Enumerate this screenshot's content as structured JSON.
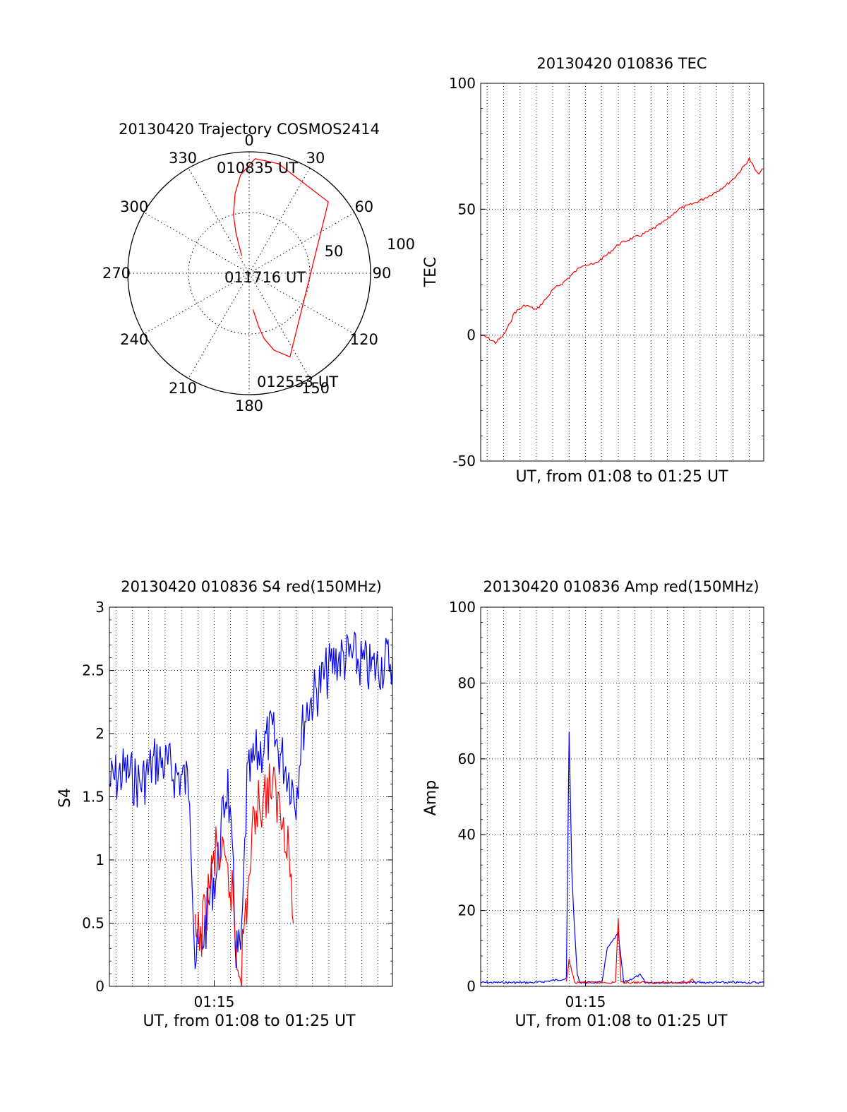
{
  "colors": {
    "red": "#ff0000",
    "blue": "#0000ff",
    "axis": "#000000",
    "grid": "#000000",
    "background": "#ffffff"
  },
  "polar": {
    "title": "20130420 Trajectory COSMOS2414",
    "azimuth_labels": [
      "0",
      "30",
      "60",
      "90",
      "120",
      "150",
      "180",
      "210",
      "240",
      "270",
      "300",
      "330"
    ],
    "radial_labels": [
      "50",
      "100"
    ],
    "annotations": {
      "start": "010835 UT",
      "middle": "011716 UT",
      "end": "012553 UT"
    },
    "grid": "dotted",
    "trajectory": {
      "series": "red",
      "points_az_el": [
        [
          337,
          76
        ],
        [
          340,
          68
        ],
        [
          342,
          58
        ],
        [
          345,
          45
        ],
        [
          350,
          30
        ],
        [
          355,
          17
        ],
        [
          3,
          5
        ],
        [
          15,
          6
        ],
        [
          48,
          11
        ],
        [
          154,
          21
        ],
        [
          162,
          30
        ],
        [
          167,
          40
        ],
        [
          170,
          50
        ],
        [
          172,
          58
        ],
        [
          174,
          63
        ]
      ]
    }
  },
  "chart_data": [
    {
      "type": "line",
      "title": "20130420 010836 TEC",
      "xlabel": "UT, from 01:08 to 01:25 UT",
      "ylabel": "TEC",
      "xlim": [
        "01:08:36",
        "01:25:53"
      ],
      "ylim": [
        -50,
        100
      ],
      "yticks": [
        "-50",
        "0",
        "50",
        "100"
      ],
      "xticks": [],
      "grid": true,
      "series": [
        {
          "color": "red",
          "x": [
            "01:08:36",
            "01:09:00",
            "01:09:30",
            "01:10:00",
            "01:10:20",
            "01:10:40",
            "01:11:20",
            "01:12:00",
            "01:12:40",
            "01:13:00",
            "01:13:40",
            "01:14:20",
            "01:14:50",
            "01:15:30",
            "01:16:20",
            "01:17:00",
            "01:17:40",
            "01:18:30",
            "01:19:20",
            "01:20:00",
            "01:20:40",
            "01:21:30",
            "01:22:10",
            "01:23:00",
            "01:23:40",
            "01:24:10",
            "01:24:40",
            "01:25:00",
            "01:25:30",
            "01:25:53"
          ],
          "values": [
            0,
            -1,
            -3,
            0,
            4,
            9,
            12,
            10,
            15,
            18,
            21,
            25,
            28,
            28,
            32,
            36,
            38,
            40,
            43,
            46,
            50,
            52,
            54,
            57,
            60,
            63,
            67,
            70,
            64,
            66
          ]
        }
      ]
    },
    {
      "type": "line",
      "title": "20130420 010836 S4 red(150MHz)",
      "xlabel": "UT, from 01:08 to 01:25 UT",
      "ylabel": "S4",
      "xlim": [
        "01:08:36",
        "01:25:53"
      ],
      "ylim": [
        0,
        3
      ],
      "yticks": [
        "0",
        "0.5",
        "1",
        "1.5",
        "2",
        "2.5",
        "3"
      ],
      "xticks": [
        "01:15"
      ],
      "grid": true,
      "series": [
        {
          "color": "blue",
          "x": [
            "01:08:36",
            "01:09:30",
            "01:10:30",
            "01:11:30",
            "01:12:30",
            "01:13:30",
            "01:13:50",
            "01:14:10",
            "01:14:30",
            "01:14:50",
            "01:15:10",
            "01:15:40",
            "01:15:50",
            "01:16:10",
            "01:16:20",
            "01:16:30",
            "01:16:40",
            "01:17:00",
            "01:17:30",
            "01:18:30",
            "01:19:30",
            "01:20:00",
            "01:20:20",
            "01:20:40",
            "01:21:30",
            "01:22:30",
            "01:23:30",
            "01:24:30",
            "01:25:53"
          ],
          "values": [
            1.6,
            1.7,
            1.6,
            1.8,
            1.7,
            1.6,
            0.2,
            0.3,
            0.5,
            0.8,
            0.9,
            1.5,
            1.6,
            0.8,
            0.3,
            0.25,
            0.3,
            1.6,
            1.8,
            2.0,
            1.7,
            1.5,
            2.0,
            2.2,
            2.4,
            2.6,
            2.6,
            2.5,
            2.6
          ]
        },
        {
          "color": "red",
          "x": [
            "01:13:50",
            "01:14:10",
            "01:14:30",
            "01:14:50",
            "01:15:10",
            "01:16:10",
            "01:16:20",
            "01:16:30",
            "01:16:40",
            "01:17:30",
            "01:18:30",
            "01:19:30",
            "01:19:50"
          ],
          "values": [
            0.35,
            0.4,
            0.6,
            0.9,
            1.1,
            0.7,
            0.25,
            0.2,
            0.2,
            1.4,
            1.6,
            1.2,
            0.5
          ]
        }
      ]
    },
    {
      "type": "line",
      "title": "20130420 010836 Amp red(150MHz)",
      "xlabel": "UT, from 01:08 to 01:25 UT",
      "ylabel": "Amp",
      "xlim": [
        "01:08:36",
        "01:25:53"
      ],
      "ylim": [
        0,
        100
      ],
      "yticks": [
        "0",
        "20",
        "40",
        "60",
        "80",
        "100"
      ],
      "xticks": [
        "01:15"
      ],
      "grid": true,
      "series": [
        {
          "color": "blue",
          "x": [
            "01:08:36",
            "01:10:00",
            "01:12:00",
            "01:13:50",
            "01:14:00",
            "01:14:10",
            "01:14:20",
            "01:14:30",
            "01:14:40",
            "01:15:00",
            "01:16:00",
            "01:16:20",
            "01:16:40",
            "01:17:00",
            "01:17:20",
            "01:18:20",
            "01:18:40",
            "01:20:00",
            "01:22:00",
            "01:24:00",
            "01:25:53"
          ],
          "values": [
            1,
            1,
            1,
            2,
            67,
            30,
            15,
            3,
            1,
            1,
            1,
            10,
            12,
            14,
            1,
            3,
            1,
            1,
            1,
            1,
            1
          ]
        },
        {
          "color": "red",
          "x": [
            "01:13:50",
            "01:14:00",
            "01:14:10",
            "01:14:20",
            "01:16:50",
            "01:17:00",
            "01:17:10",
            "01:21:20",
            "01:21:30",
            "01:21:40"
          ],
          "values": [
            1,
            7,
            4,
            1,
            1,
            18,
            1,
            1,
            2,
            1
          ]
        }
      ]
    }
  ]
}
